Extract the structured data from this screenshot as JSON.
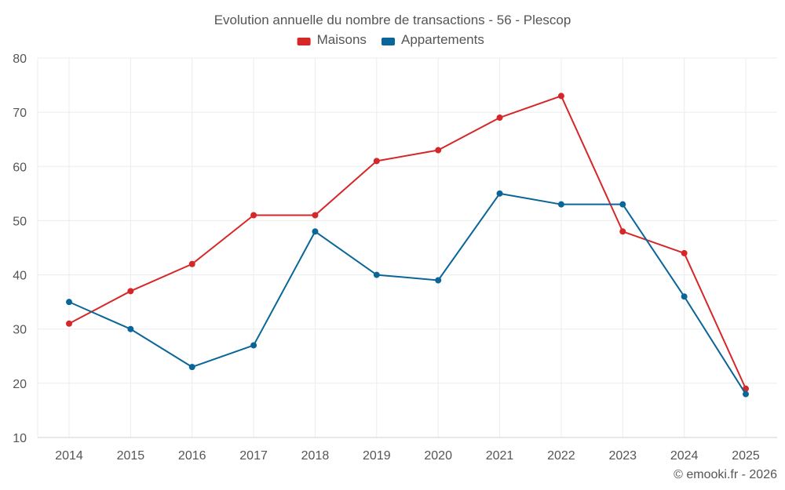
{
  "chart_data": {
    "type": "line",
    "title": "Evolution annuelle du nombre de transactions - 56 - Plescop",
    "categories": [
      "2014",
      "2015",
      "2016",
      "2017",
      "2018",
      "2019",
      "2020",
      "2021",
      "2022",
      "2023",
      "2024",
      "2025"
    ],
    "series": [
      {
        "name": "Maisons",
        "color": "#d62728",
        "values": [
          31,
          37,
          42,
          51,
          51,
          61,
          63,
          69,
          73,
          48,
          44,
          19
        ]
      },
      {
        "name": "Appartements",
        "color": "#0a6699",
        "values": [
          35,
          30,
          23,
          27,
          48,
          40,
          39,
          55,
          53,
          53,
          36,
          18
        ]
      }
    ],
    "ylim": [
      10,
      80
    ],
    "yticks": [
      10,
      20,
      30,
      40,
      50,
      60,
      70,
      80
    ],
    "xlabel": "",
    "ylabel": "",
    "grid": true,
    "legend": "top-center"
  },
  "credit": "© emooki.fr - 2026"
}
